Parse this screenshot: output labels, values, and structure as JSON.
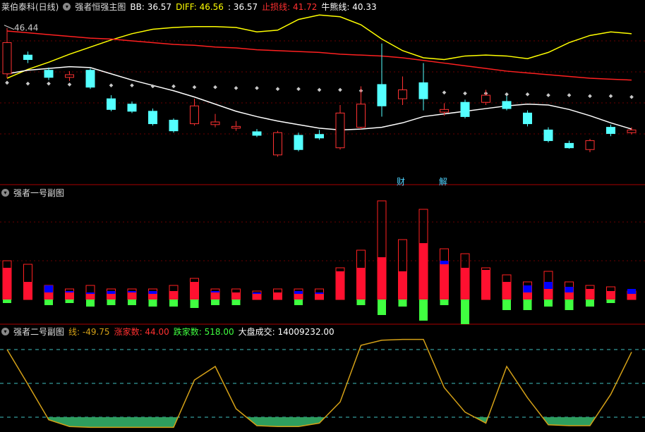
{
  "chart_data": [
    {
      "type": "candlestick",
      "stock": "莱伯泰科(日线)",
      "title": "强者恒强主图",
      "indicators": [
        {
          "text": "BB: 36.57",
          "color": "#ffffff"
        },
        {
          "text": "DIFF: 46.56",
          "color": "#ffff00"
        },
        {
          "text": ": 36.57",
          "color": "#ffffff"
        },
        {
          "text": "止损线: 41.72",
          "color": "#ff3030"
        },
        {
          "text": "牛熊线: 40.33",
          "color": "#ffffff"
        }
      ],
      "markers": [
        "财",
        "解"
      ],
      "ylim": [
        31,
        48
      ],
      "up_color": "#ff3232",
      "down_color": "#54ffff",
      "open": [
        41.3,
        43.4,
        41.7,
        40.9,
        41.7,
        38.5,
        37.9,
        37.1,
        36.1,
        35.7,
        35.6,
        35.2,
        34.8,
        32.2,
        34.4,
        34.5,
        33.0,
        35.3,
        40.1,
        38.5,
        40.3,
        37.0,
        38.1,
        38.1,
        38.2,
        36.9,
        35.0,
        33.5,
        32.8,
        35.3,
        34.7
      ],
      "high": [
        46.44,
        43.8,
        42.0,
        41.6,
        41.9,
        38.9,
        38.2,
        37.4,
        36.3,
        38.5,
        36.8,
        36.0,
        35.1,
        34.9,
        34.7,
        35.0,
        37.8,
        39.9,
        44.7,
        41.0,
        42.5,
        38.0,
        38.4,
        39.5,
        38.8,
        37.2,
        35.3,
        33.8,
        34.0,
        35.6,
        35.3
      ],
      "low": [
        40.8,
        42.5,
        40.6,
        40.5,
        39.6,
        37.1,
        36.9,
        35.5,
        34.7,
        35.5,
        35.3,
        34.9,
        34.2,
        32.0,
        32.6,
        33.9,
        32.8,
        35.1,
        36.5,
        37.8,
        37.2,
        36.6,
        36.3,
        37.8,
        37.2,
        35.4,
        33.6,
        32.9,
        32.5,
        34.3,
        34.5
      ],
      "close": [
        44.8,
        42.9,
        40.9,
        41.2,
        39.8,
        37.3,
        37.1,
        35.7,
        34.9,
        37.7,
        35.9,
        35.4,
        34.4,
        34.7,
        32.8,
        34.1,
        36.9,
        37.9,
        37.7,
        39.5,
        38.5,
        37.3,
        36.5,
        38.9,
        37.4,
        35.7,
        33.8,
        33.0,
        33.8,
        34.6,
        35.0
      ],
      "lines": [
        {
          "color": "#ffff00",
          "values": [
            40.8,
            41.8,
            42.6,
            43.5,
            44.3,
            45.1,
            45.8,
            46.3,
            46.5,
            46.6,
            46.6,
            46.5,
            46.0,
            46.2,
            47.4,
            47.9,
            47.7,
            46.8,
            45.2,
            43.9,
            43.1,
            42.9,
            43.3,
            43.4,
            43.3,
            43.0,
            43.7,
            44.8,
            45.6,
            46.0,
            45.8
          ]
        },
        {
          "color": "#ff2020",
          "values": [
            46.1,
            45.9,
            45.7,
            45.5,
            45.3,
            45.2,
            45.0,
            44.8,
            44.6,
            44.5,
            44.3,
            44.2,
            44.0,
            43.9,
            43.8,
            43.7,
            43.5,
            43.4,
            43.3,
            43.1,
            42.8,
            42.5,
            42.2,
            41.9,
            41.6,
            41.4,
            41.2,
            41.0,
            40.8,
            40.7,
            40.6
          ]
        },
        {
          "color": "#ffffff",
          "values": [
            41.3,
            41.7,
            41.9,
            42.1,
            42.0,
            41.3,
            40.6,
            40.0,
            39.4,
            38.7,
            37.9,
            37.1,
            36.5,
            36.0,
            35.6,
            35.2,
            35.0,
            35.1,
            35.3,
            35.8,
            36.5,
            36.8,
            37.1,
            37.4,
            37.7,
            37.9,
            37.8,
            37.3,
            36.6,
            35.8,
            35.1
          ]
        }
      ],
      "dots": {
        "color": "#c8c8c8",
        "values": [
          40.3,
          40.2,
          40.2,
          40.1,
          40.1,
          40.0,
          40.0,
          39.9,
          39.9,
          39.8,
          39.8,
          39.7,
          39.7,
          39.6,
          39.6,
          39.5,
          39.5,
          39.4,
          39.4,
          39.3,
          39.2,
          39.2,
          39.1,
          39.1,
          39.0,
          39.0,
          38.9,
          38.9,
          38.8,
          38.8,
          38.7
        ]
      }
    },
    {
      "type": "bar",
      "title": "强者一号副图",
      "ylim": [
        -35,
        160
      ],
      "series": [
        {
          "color": "#ff2020",
          "style": "outline",
          "values": [
            55,
            50,
            20,
            15,
            20,
            15,
            15,
            15,
            20,
            30,
            15,
            15,
            12,
            15,
            15,
            15,
            45,
            70,
            140,
            85,
            128,
            72,
            65,
            45,
            35,
            25,
            40,
            25,
            20,
            18,
            12
          ]
        },
        {
          "color": "#0000ff",
          "style": "fill",
          "values": [
            0,
            0,
            20,
            12,
            10,
            12,
            12,
            12,
            10,
            18,
            12,
            10,
            10,
            0,
            12,
            10,
            15,
            0,
            0,
            0,
            50,
            55,
            0,
            40,
            20,
            20,
            25,
            18,
            12,
            0,
            15
          ]
        },
        {
          "color": "#ff1030",
          "style": "fill",
          "values": [
            45,
            25,
            10,
            10,
            8,
            8,
            10,
            8,
            12,
            25,
            10,
            10,
            8,
            10,
            8,
            8,
            40,
            45,
            60,
            40,
            80,
            50,
            45,
            42,
            25,
            10,
            15,
            10,
            15,
            12,
            8
          ]
        },
        {
          "color": "#40ff40",
          "style": "fill",
          "values": [
            -5,
            0,
            -8,
            -5,
            -10,
            -8,
            -8,
            -10,
            -10,
            -12,
            -8,
            -8,
            0,
            0,
            -8,
            0,
            0,
            -8,
            -22,
            -10,
            -30,
            -8,
            -35,
            0,
            -15,
            -15,
            -10,
            -15,
            -10,
            -5,
            0
          ]
        }
      ]
    },
    {
      "type": "line",
      "title": "强者二号副图",
      "indicators": [
        {
          "text": "线: -49.75",
          "color": "#d4a017"
        },
        {
          "text": "涨家数: 44.00",
          "color": "#ff3030"
        },
        {
          "text": "跌家数: 518.00",
          "color": "#40ff40"
        },
        {
          "text": "大盘成交: 14009232.00",
          "color": "#ffffff"
        }
      ],
      "ylim": [
        -5,
        105
      ],
      "color": "#d4a017",
      "fill_color": "#2e9e5e",
      "levels": [
        {
          "value": 10,
          "color": "#3fbfbf"
        },
        {
          "value": 50,
          "color": "#3fbfbf"
        },
        {
          "value": 90,
          "color": "#3fbfbf"
        }
      ],
      "values": [
        90,
        49,
        7,
        -1,
        -2,
        -2,
        -2,
        -2,
        -2,
        54,
        70,
        20,
        0,
        -1,
        -1,
        3,
        28,
        95,
        101,
        102,
        102,
        45,
        16,
        3,
        70,
        33,
        1,
        0,
        0,
        37,
        87
      ]
    }
  ]
}
